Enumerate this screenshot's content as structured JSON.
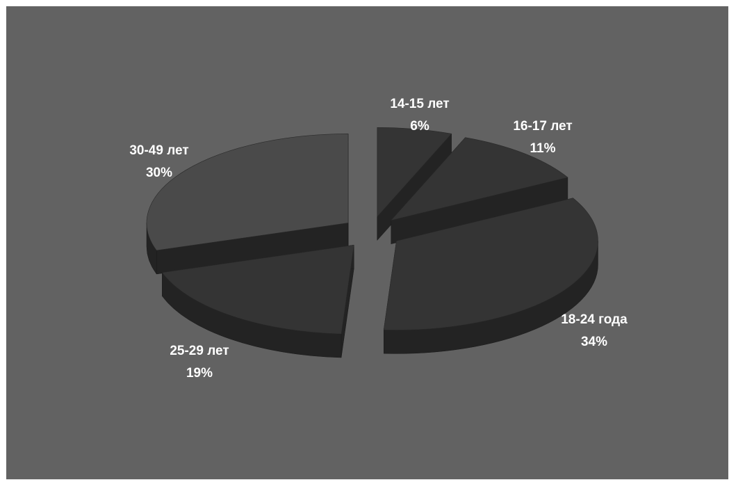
{
  "chart_data": {
    "type": "pie",
    "style": "3d-exploded",
    "categories": [
      "14-15 лет",
      "16-17 лет",
      "18-24 года",
      "25-29 лет",
      "30-49 лет"
    ],
    "values": [
      6,
      11,
      34,
      19,
      30
    ],
    "value_labels": [
      "6%",
      "11%",
      "34%",
      "19%",
      "30%"
    ],
    "colors": {
      "background": "#626262",
      "slice_top": "#343434",
      "slice_top_large": "#4a4a4a",
      "slice_side": "#232323",
      "label": "#ffffff"
    }
  }
}
